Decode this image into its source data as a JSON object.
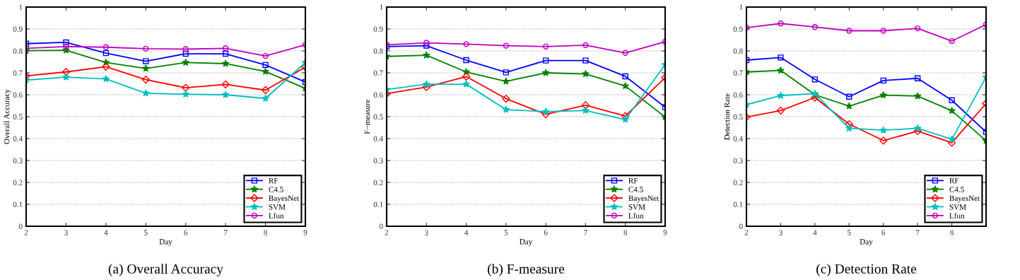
{
  "chart_data": [
    {
      "type": "line",
      "title": "(a) Overall Accuracy",
      "xlabel": "Day",
      "ylabel": "Overall Accuracy",
      "x": [
        2,
        3,
        4,
        5,
        6,
        7,
        8,
        9
      ],
      "xlim": [
        2,
        9
      ],
      "xticks": [
        2,
        3,
        4,
        5,
        6,
        7,
        8,
        9
      ],
      "ylim": [
        0,
        1
      ],
      "yticks": [
        0,
        0.1,
        0.2,
        0.3,
        0.4,
        0.5,
        0.6,
        0.7,
        0.8,
        0.9,
        1
      ],
      "grid": "y",
      "legend": "bottom right",
      "line_style": "solid",
      "series": [
        {
          "name": "RF",
          "color": "#0000ff",
          "marker": "square",
          "values": [
            0.833,
            0.839,
            0.79,
            0.753,
            0.787,
            0.787,
            0.736,
            0.658
          ]
        },
        {
          "name": "C4.5",
          "color": "#008000",
          "marker": "star",
          "values": [
            0.801,
            0.803,
            0.747,
            0.72,
            0.747,
            0.742,
            0.706,
            0.629
          ]
        },
        {
          "name": "BayesNet",
          "color": "#ff0000",
          "marker": "diamond",
          "values": [
            0.686,
            0.704,
            0.728,
            0.669,
            0.632,
            0.647,
            0.621,
            0.726
          ]
        },
        {
          "name": "SVM",
          "color": "#00bfbf",
          "marker": "star",
          "values": [
            0.667,
            0.68,
            0.672,
            0.607,
            0.602,
            0.6,
            0.583,
            0.747
          ]
        },
        {
          "name": "Lfun",
          "color": "#bf00bf",
          "marker": "circle",
          "values": [
            0.812,
            0.82,
            0.817,
            0.81,
            0.808,
            0.812,
            0.777,
            0.828
          ]
        }
      ]
    },
    {
      "type": "line",
      "title": "(b) F-measure",
      "xlabel": "Day",
      "ylabel": "F−measure",
      "x": [
        2,
        3,
        4,
        5,
        6,
        7,
        8,
        9
      ],
      "xlim": [
        2,
        9
      ],
      "xticks": [
        2,
        3,
        4,
        5,
        6,
        7,
        8,
        9
      ],
      "ylim": [
        0,
        1
      ],
      "yticks": [
        0,
        0.1,
        0.2,
        0.3,
        0.4,
        0.5,
        0.6,
        0.7,
        0.8,
        0.9,
        1
      ],
      "grid": "y",
      "legend": "bottom right",
      "line_style": "solid",
      "series": [
        {
          "name": "RF",
          "color": "#0000ff",
          "marker": "square",
          "values": [
            0.82,
            0.824,
            0.758,
            0.702,
            0.756,
            0.756,
            0.684,
            0.543
          ]
        },
        {
          "name": "C4.5",
          "color": "#008000",
          "marker": "star",
          "values": [
            0.775,
            0.78,
            0.704,
            0.661,
            0.7,
            0.695,
            0.64,
            0.498
          ]
        },
        {
          "name": "BayesNet",
          "color": "#ff0000",
          "marker": "diamond",
          "values": [
            0.605,
            0.635,
            0.683,
            0.582,
            0.511,
            0.552,
            0.503,
            0.678
          ]
        },
        {
          "name": "SVM",
          "color": "#00bfbf",
          "marker": "star",
          "values": [
            0.624,
            0.648,
            0.648,
            0.532,
            0.523,
            0.528,
            0.487,
            0.737
          ]
        },
        {
          "name": "Lfun",
          "color": "#bf00bf",
          "marker": "circle",
          "values": [
            0.828,
            0.837,
            0.831,
            0.824,
            0.82,
            0.826,
            0.791,
            0.842
          ]
        }
      ]
    },
    {
      "type": "line",
      "title": "(c) Detection Rate",
      "xlabel": "Day",
      "ylabel": "Detection Rate",
      "x": [
        2,
        3,
        4,
        5,
        6,
        7,
        8,
        9
      ],
      "xlim": [
        2,
        9
      ],
      "xticks": [
        2,
        3,
        4,
        5,
        6,
        7,
        8
      ],
      "ylim": [
        0,
        1
      ],
      "yticks": [
        0,
        0.1,
        0.2,
        0.3,
        0.4,
        0.5,
        0.6,
        0.7,
        0.8,
        0.9,
        1
      ],
      "grid": "y",
      "legend": "bottom right",
      "line_style": "solid",
      "series": [
        {
          "name": "RF",
          "color": "#0000ff",
          "marker": "square",
          "values": [
            0.758,
            0.77,
            0.67,
            0.591,
            0.665,
            0.675,
            0.575,
            0.43
          ]
        },
        {
          "name": "C4.5",
          "color": "#008000",
          "marker": "star",
          "values": [
            0.704,
            0.711,
            0.6,
            0.548,
            0.598,
            0.594,
            0.527,
            0.39
          ]
        },
        {
          "name": "BayesNet",
          "color": "#ff0000",
          "marker": "diamond",
          "values": [
            0.498,
            0.528,
            0.587,
            0.466,
            0.391,
            0.434,
            0.381,
            0.56
          ]
        },
        {
          "name": "SVM",
          "color": "#00bfbf",
          "marker": "star",
          "values": [
            0.555,
            0.596,
            0.605,
            0.447,
            0.438,
            0.447,
            0.397,
            0.68
          ]
        },
        {
          "name": "Lfun",
          "color": "#bf00bf",
          "marker": "circle",
          "values": [
            0.906,
            0.925,
            0.909,
            0.892,
            0.892,
            0.903,
            0.845,
            0.92
          ]
        }
      ]
    }
  ]
}
